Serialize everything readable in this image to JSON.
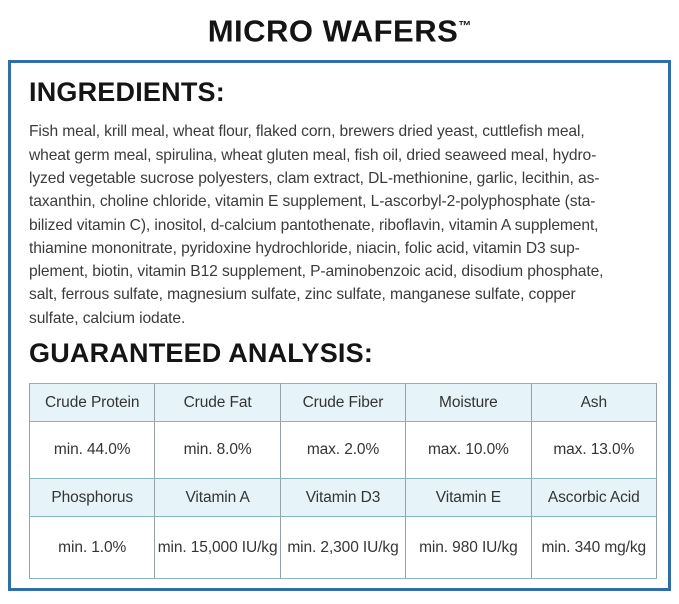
{
  "header": {
    "title": "MICRO WAFERS",
    "trademark": "™"
  },
  "ingredients": {
    "heading": "INGREDIENTS:",
    "lines": [
      "Fish meal, krill meal, wheat flour, flaked corn, brewers dried yeast, cuttlefish meal,",
      "wheat germ meal, spirulina, wheat gluten meal, fish oil, dried seaweed meal, hydro-",
      "lyzed vegetable sucrose polyesters, clam extract, DL-methionine, garlic, lecithin, as-",
      "taxanthin, choline chloride, vitamin E supplement, L-ascorbyl-2-polyphosphate (sta-",
      "bilized vitamin C), inositol, d-calcium pantothenate, riboflavin, vitamin A supplement,",
      "thiamine mononitrate, pyridoxine hydrochloride, niacin, folic acid, vitamin D3 sup-",
      "plement, biotin, vitamin B12 supplement, P-aminobenzoic acid, disodium phosphate,",
      "salt, ferrous sulfate, magnesium sulfate, zinc sulfate, manganese sulfate, copper",
      "sulfate, calcium iodate."
    ]
  },
  "analysis": {
    "heading": "GUARANTEED ANALYSIS:",
    "table": {
      "rows": [
        {
          "type": "header",
          "cells": [
            "Crude Protein",
            "Crude Fat",
            "Crude Fiber",
            "Moisture",
            "Ash"
          ]
        },
        {
          "type": "value",
          "cells": [
            "min. 44.0%",
            "min. 8.0%",
            "max. 2.0%",
            "max. 10.0%",
            "max. 13.0%"
          ]
        },
        {
          "type": "header",
          "cells": [
            "Phosphorus",
            "Vitamin A",
            "Vitamin D3",
            "Vitamin E",
            "Ascorbic Acid"
          ]
        },
        {
          "type": "value",
          "cells": [
            "min. 1.0%",
            "min. 15,000 IU/kg",
            "min. 2,300 IU/kg",
            "min. 980 IU/kg",
            "min. 340 mg/kg"
          ]
        }
      ]
    }
  },
  "colors": {
    "panel_border": "#2f6ea8",
    "table_header_bg": "#e6f3f9",
    "table_border_horizontal": "#86b6c6",
    "table_border_vertical": "#97a1a5",
    "title_text": "#141414",
    "body_text": "#3b3b3b"
  }
}
